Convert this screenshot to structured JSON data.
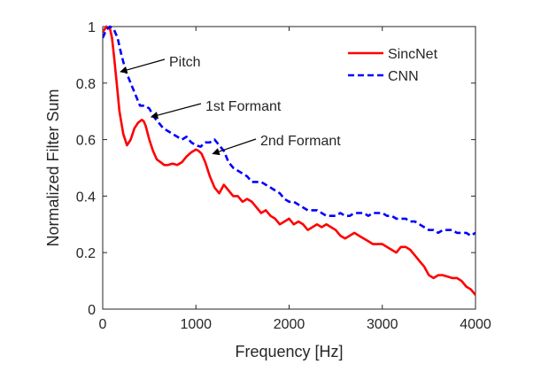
{
  "chart_data": {
    "type": "line",
    "title": "",
    "xlabel": "Frequency [Hz]",
    "ylabel": "Normalized Filter Sum",
    "xlim": [
      0,
      4000
    ],
    "ylim": [
      0,
      1
    ],
    "xticks": [
      0,
      1000,
      2000,
      3000,
      4000
    ],
    "yticks": [
      0,
      0.2,
      0.4,
      0.6,
      0.8,
      1
    ],
    "xtick_labels": [
      "0",
      "1000",
      "2000",
      "3000",
      "4000"
    ],
    "ytick_labels": [
      "0",
      "0.2",
      "0.4",
      "0.6",
      "0.8",
      "1"
    ],
    "grid": false,
    "legend": "top-right",
    "series": [
      {
        "name": "SincNet",
        "color": "#ff0000",
        "style": "solid",
        "x": [
          0,
          40,
          80,
          100,
          120,
          150,
          180,
          220,
          260,
          300,
          340,
          380,
          420,
          440,
          460,
          500,
          540,
          580,
          620,
          660,
          700,
          750,
          800,
          850,
          900,
          950,
          1000,
          1030,
          1060,
          1100,
          1150,
          1200,
          1250,
          1300,
          1350,
          1400,
          1450,
          1500,
          1550,
          1600,
          1650,
          1700,
          1750,
          1800,
          1850,
          1900,
          1950,
          2000,
          2050,
          2100,
          2150,
          2200,
          2250,
          2300,
          2350,
          2400,
          2450,
          2500,
          2550,
          2600,
          2650,
          2700,
          2750,
          2800,
          2850,
          2900,
          2950,
          3000,
          3050,
          3100,
          3150,
          3200,
          3250,
          3300,
          3350,
          3400,
          3450,
          3500,
          3550,
          3600,
          3650,
          3700,
          3750,
          3800,
          3850,
          3900,
          3950,
          4000
        ],
        "y": [
          0.98,
          1.0,
          0.99,
          0.96,
          0.9,
          0.8,
          0.7,
          0.62,
          0.58,
          0.6,
          0.64,
          0.66,
          0.67,
          0.665,
          0.65,
          0.6,
          0.56,
          0.53,
          0.52,
          0.51,
          0.51,
          0.515,
          0.51,
          0.52,
          0.54,
          0.555,
          0.565,
          0.56,
          0.55,
          0.52,
          0.47,
          0.43,
          0.41,
          0.44,
          0.42,
          0.4,
          0.4,
          0.38,
          0.39,
          0.38,
          0.36,
          0.34,
          0.35,
          0.33,
          0.32,
          0.3,
          0.31,
          0.32,
          0.3,
          0.31,
          0.3,
          0.28,
          0.29,
          0.3,
          0.29,
          0.3,
          0.29,
          0.28,
          0.26,
          0.25,
          0.26,
          0.27,
          0.26,
          0.25,
          0.24,
          0.23,
          0.23,
          0.23,
          0.22,
          0.21,
          0.2,
          0.22,
          0.22,
          0.21,
          0.19,
          0.17,
          0.15,
          0.12,
          0.11,
          0.12,
          0.12,
          0.115,
          0.11,
          0.11,
          0.1,
          0.08,
          0.07,
          0.05
        ]
      },
      {
        "name": "CNN",
        "color": "#0000ff",
        "style": "dashed",
        "x": [
          0,
          40,
          80,
          120,
          160,
          200,
          250,
          300,
          350,
          400,
          450,
          500,
          550,
          600,
          650,
          700,
          750,
          800,
          850,
          900,
          950,
          1000,
          1050,
          1100,
          1150,
          1200,
          1250,
          1300,
          1350,
          1400,
          1450,
          1500,
          1550,
          1600,
          1650,
          1700,
          1750,
          1800,
          1850,
          1900,
          1950,
          2000,
          2050,
          2100,
          2150,
          2200,
          2250,
          2300,
          2350,
          2400,
          2450,
          2500,
          2550,
          2600,
          2650,
          2700,
          2750,
          2800,
          2850,
          2900,
          2950,
          3000,
          3050,
          3100,
          3150,
          3200,
          3250,
          3300,
          3350,
          3400,
          3450,
          3500,
          3550,
          3600,
          3650,
          3700,
          3750,
          3800,
          3850,
          3900,
          3950,
          4000
        ],
        "y": [
          0.96,
          0.99,
          1.0,
          0.99,
          0.96,
          0.9,
          0.84,
          0.8,
          0.76,
          0.72,
          0.72,
          0.71,
          0.68,
          0.66,
          0.64,
          0.63,
          0.62,
          0.61,
          0.6,
          0.61,
          0.59,
          0.58,
          0.575,
          0.59,
          0.59,
          0.6,
          0.58,
          0.56,
          0.52,
          0.5,
          0.49,
          0.48,
          0.47,
          0.45,
          0.45,
          0.45,
          0.44,
          0.43,
          0.42,
          0.41,
          0.39,
          0.38,
          0.38,
          0.37,
          0.36,
          0.35,
          0.35,
          0.35,
          0.34,
          0.33,
          0.33,
          0.33,
          0.34,
          0.33,
          0.33,
          0.34,
          0.34,
          0.34,
          0.33,
          0.34,
          0.34,
          0.34,
          0.33,
          0.33,
          0.32,
          0.32,
          0.32,
          0.31,
          0.31,
          0.3,
          0.29,
          0.28,
          0.28,
          0.27,
          0.28,
          0.28,
          0.28,
          0.27,
          0.27,
          0.27,
          0.26,
          0.27
        ]
      }
    ],
    "annotations": [
      {
        "text": "Pitch",
        "x": 190,
        "y": 0.84
      },
      {
        "text": "1st Formant",
        "x": 520,
        "y": 0.68
      },
      {
        "text": "2nd Formant",
        "x": 1180,
        "y": 0.55
      }
    ]
  }
}
